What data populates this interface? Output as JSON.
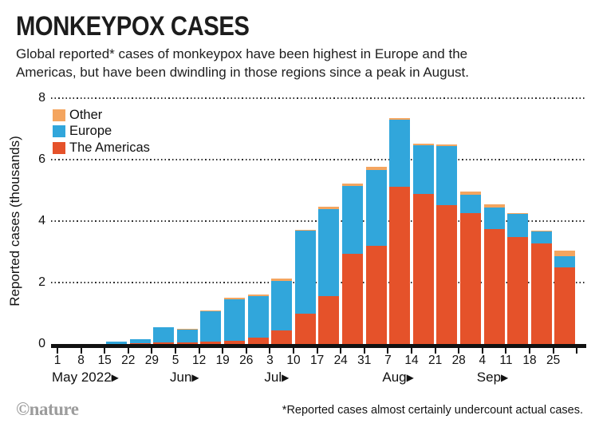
{
  "header": {
    "title": "MONKEYPOX CASES",
    "subtitle_lines": [
      "Global reported* cases of monkeypox have been highest in Europe and the",
      "Americas, but have been dwindling in those regions since a peak in August."
    ]
  },
  "legend": {
    "items": [
      {
        "label": "Other",
        "color": "#F4A55F"
      },
      {
        "label": "Europe",
        "color": "#31A6DB"
      },
      {
        "label": "The Americas",
        "color": "#E5522A"
      }
    ]
  },
  "chart_data": {
    "type": "bar",
    "stacked": true,
    "title": "MONKEYPOX CASES",
    "xlabel": "",
    "ylabel": "Reported cases (thousands)",
    "ylim": [
      0,
      8
    ],
    "ytick_values": [
      0,
      2,
      4,
      6,
      8
    ],
    "grid": "dotted horizontal gridlines at 2, 4, 6, 8; bars drawn over gridlines",
    "legend_position": "top-left inside plot",
    "categories": [
      "May 15",
      "May 22",
      "May 29",
      "Jun 5",
      "Jun 12",
      "Jun 19",
      "Jun 26",
      "Jul 3",
      "Jul 10",
      "Jul 17",
      "Jul 24",
      "Jul 31",
      "Aug 7",
      "Aug 14",
      "Aug 21",
      "Aug 28",
      "Sep 4",
      "Sep 11",
      "Sep 18",
      "Sep 25"
    ],
    "series": [
      {
        "name": "The Americas",
        "color": "#E5522A",
        "values": [
          0.01,
          0.02,
          0.04,
          0.04,
          0.08,
          0.11,
          0.22,
          0.45,
          1.0,
          1.56,
          2.93,
          3.19,
          5.12,
          4.88,
          4.51,
          4.27,
          3.75,
          3.49,
          3.27,
          2.5
        ]
      },
      {
        "name": "Europe",
        "color": "#31A6DB",
        "values": [
          0.07,
          0.14,
          0.5,
          0.44,
          0.99,
          1.35,
          1.34,
          1.59,
          2.68,
          2.83,
          2.22,
          2.48,
          2.17,
          1.59,
          1.93,
          0.59,
          0.7,
          0.75,
          0.38,
          0.37
        ]
      },
      {
        "name": "Other",
        "color": "#F4A55F",
        "values": [
          0.0,
          0.0,
          0.01,
          0.01,
          0.03,
          0.04,
          0.04,
          0.08,
          0.04,
          0.07,
          0.07,
          0.09,
          0.05,
          0.05,
          0.06,
          0.1,
          0.1,
          0.03,
          0.03,
          0.17
        ]
      }
    ],
    "x_axis": {
      "tick_labels": [
        "1",
        "8",
        "15",
        "22",
        "29",
        "5",
        "12",
        "19",
        "26",
        "3",
        "10",
        "17",
        "24",
        "31",
        "7",
        "14",
        "21",
        "28",
        "4",
        "11",
        "18",
        "25"
      ],
      "total_bins": 22,
      "first_bar_bin_index": 2,
      "month_labels": [
        {
          "label": "May 2022",
          "arrow": "▶",
          "tick_index": 0
        },
        {
          "label": "Jun",
          "arrow": "▶",
          "tick_index": 5
        },
        {
          "label": "Jul",
          "arrow": "▶",
          "tick_index": 9
        },
        {
          "label": "Aug",
          "arrow": "▶",
          "tick_index": 14
        },
        {
          "label": "Sep",
          "arrow": "▶",
          "tick_index": 18
        }
      ]
    }
  },
  "footer": {
    "credit": "©nature",
    "footnote": "*Reported cases almost certainly undercount actual cases."
  }
}
